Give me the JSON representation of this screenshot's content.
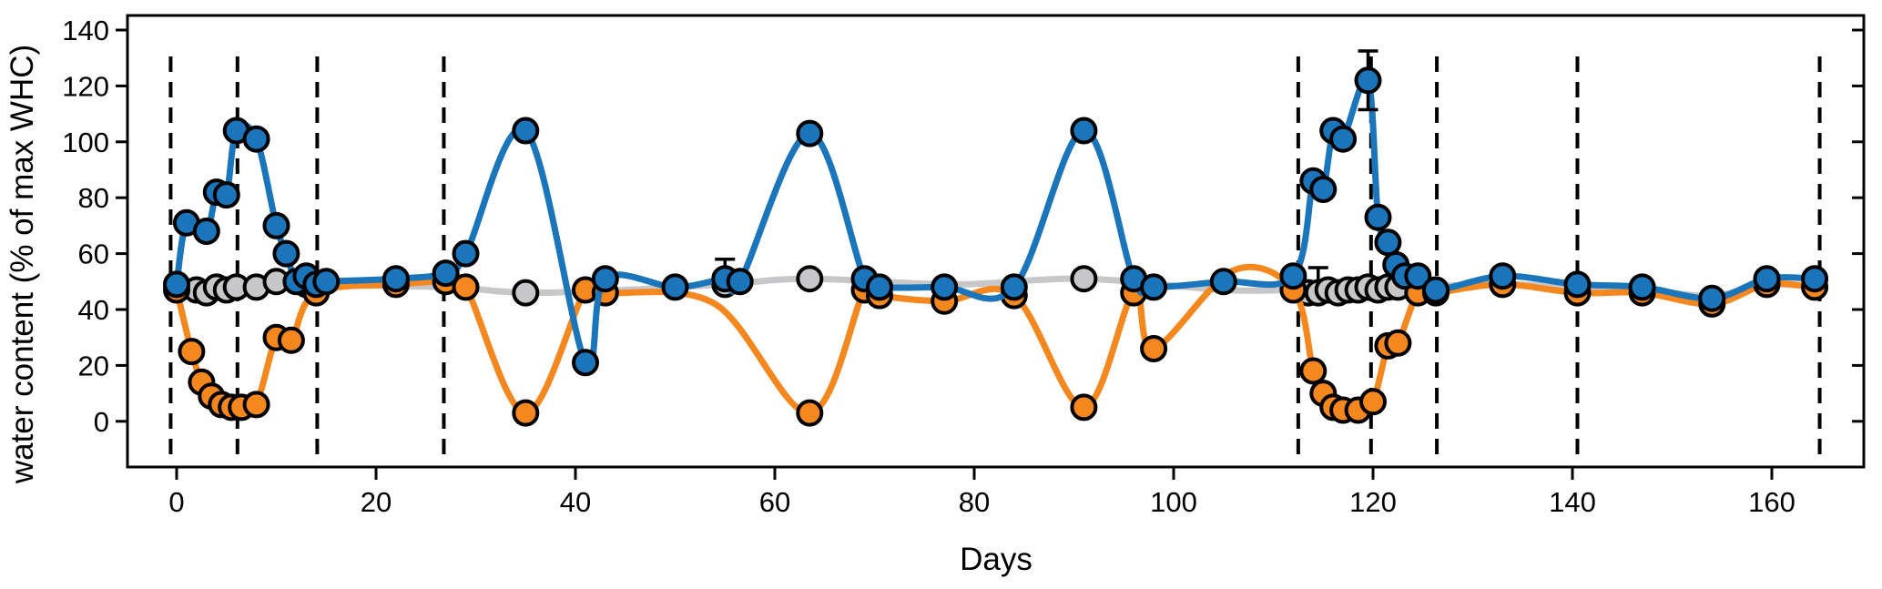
{
  "figure": {
    "x_axis": {
      "label": "Days",
      "ticks": [
        0,
        20,
        40,
        60,
        80,
        100,
        120,
        140,
        160
      ]
    },
    "y_axis": {
      "label": "water content (% of max WHC)",
      "ticks": [
        0,
        20,
        40,
        60,
        80,
        100,
        120,
        140
      ]
    },
    "event_lines_days": [
      -0.6,
      6.1,
      14.1,
      26.8,
      112.5,
      119.8,
      126.4,
      140.5,
      164.8
    ]
  },
  "colors": {
    "blue_series": "#1b75bb",
    "orange_series": "#f5871f",
    "gray_series": "#c7c7c9",
    "marker_edge": "#000000",
    "frame": "#000000",
    "event_line": "#000000"
  },
  "chart_data": {
    "type": "line",
    "title": "",
    "xlabel": "Days",
    "ylabel": "water content (% of max WHC)",
    "x_range": [
      -4.9,
      169.2
    ],
    "y_range": [
      -16.4,
      145.2
    ],
    "grid": false,
    "legend": "none",
    "marker": "circle",
    "line_style": "smooth-spline",
    "event_lines_days": [
      -0.6,
      6.1,
      14.1,
      26.8,
      112.5,
      119.8,
      126.4,
      140.5,
      164.8
    ],
    "series": [
      {
        "name": "gray",
        "color": "#c7c7c9",
        "points": [
          {
            "d": 2,
            "v": 47
          },
          {
            "d": 3,
            "v": 46
          },
          {
            "d": 4,
            "v": 48
          },
          {
            "d": 5,
            "v": 47
          },
          {
            "d": 6,
            "v": 48
          },
          {
            "d": 8,
            "v": 48
          },
          {
            "d": 10,
            "v": 50
          },
          {
            "d": 13,
            "v": 49
          },
          {
            "d": 27,
            "v": 48,
            "h": true
          },
          {
            "d": 35,
            "v": 46
          },
          {
            "d": 45,
            "v": 47,
            "h": true
          },
          {
            "d": 55,
            "v": 49,
            "eu": 9
          },
          {
            "d": 63.5,
            "v": 51
          },
          {
            "d": 78,
            "v": 49,
            "h": true
          },
          {
            "d": 91,
            "v": 51
          },
          {
            "d": 105,
            "v": 47,
            "h": true
          },
          {
            "d": 112.5,
            "v": 47
          },
          {
            "d": 113.5,
            "v": 46
          },
          {
            "d": 114.5,
            "v": 46,
            "eu": 9
          },
          {
            "d": 115.5,
            "v": 47
          },
          {
            "d": 116.5,
            "v": 46
          },
          {
            "d": 117.5,
            "v": 47
          },
          {
            "d": 118.5,
            "v": 47
          },
          {
            "d": 119.5,
            "v": 48
          },
          {
            "d": 120.5,
            "v": 47
          },
          {
            "d": 121.5,
            "v": 48
          },
          {
            "d": 122.5,
            "v": 48
          },
          {
            "d": 133,
            "v": 49,
            "h": true
          },
          {
            "d": 140.5,
            "v": 48,
            "h": true
          },
          {
            "d": 147,
            "v": 47,
            "h": true
          },
          {
            "d": 154,
            "v": 45,
            "h": true
          },
          {
            "d": 159.5,
            "v": 49,
            "h": true
          },
          {
            "d": 164.3,
            "v": 48,
            "h": true
          }
        ]
      },
      {
        "name": "orange",
        "color": "#f5871f",
        "points": [
          {
            "d": 0,
            "v": 47
          },
          {
            "d": 1.5,
            "v": 25
          },
          {
            "d": 2.5,
            "v": 14
          },
          {
            "d": 3.5,
            "v": 9
          },
          {
            "d": 4.5,
            "v": 6
          },
          {
            "d": 5.5,
            "v": 5
          },
          {
            "d": 6.5,
            "v": 5
          },
          {
            "d": 8,
            "v": 6
          },
          {
            "d": 10,
            "v": 30
          },
          {
            "d": 11.5,
            "v": 29
          },
          {
            "d": 14,
            "v": 46
          },
          {
            "d": 22,
            "v": 49
          },
          {
            "d": 27,
            "v": 50
          },
          {
            "d": 29,
            "v": 48
          },
          {
            "d": 35,
            "v": 3
          },
          {
            "d": 41,
            "v": 47
          },
          {
            "d": 43,
            "v": 46
          },
          {
            "d": 54,
            "v": 42,
            "h": true
          },
          {
            "d": 63.5,
            "v": 3
          },
          {
            "d": 69,
            "v": 47
          },
          {
            "d": 70.5,
            "v": 45
          },
          {
            "d": 77,
            "v": 43
          },
          {
            "d": 84,
            "v": 45
          },
          {
            "d": 91,
            "v": 5
          },
          {
            "d": 96,
            "v": 46
          },
          {
            "d": 98,
            "v": 26
          },
          {
            "d": 106,
            "v": 54,
            "h": true
          },
          {
            "d": 112,
            "v": 47
          },
          {
            "d": 114,
            "v": 18
          },
          {
            "d": 115,
            "v": 10
          },
          {
            "d": 116,
            "v": 5
          },
          {
            "d": 117,
            "v": 4
          },
          {
            "d": 118.5,
            "v": 4
          },
          {
            "d": 120,
            "v": 7
          },
          {
            "d": 121.5,
            "v": 27
          },
          {
            "d": 122.5,
            "v": 28
          },
          {
            "d": 124.5,
            "v": 46
          },
          {
            "d": 126.3,
            "v": 46
          },
          {
            "d": 133,
            "v": 49
          },
          {
            "d": 140.5,
            "v": 46
          },
          {
            "d": 147,
            "v": 46
          },
          {
            "d": 154,
            "v": 42
          },
          {
            "d": 159.5,
            "v": 49
          },
          {
            "d": 164.3,
            "v": 48
          }
        ]
      },
      {
        "name": "blue",
        "color": "#1b75bb",
        "points": [
          {
            "d": 0,
            "v": 49
          },
          {
            "d": 1,
            "v": 71
          },
          {
            "d": 3,
            "v": 68
          },
          {
            "d": 4,
            "v": 82
          },
          {
            "d": 5,
            "v": 81
          },
          {
            "d": 6,
            "v": 104
          },
          {
            "d": 8,
            "v": 101
          },
          {
            "d": 10,
            "v": 70
          },
          {
            "d": 11,
            "v": 60
          },
          {
            "d": 12,
            "v": 50
          },
          {
            "d": 13,
            "v": 52
          },
          {
            "d": 14,
            "v": 49
          },
          {
            "d": 15,
            "v": 50
          },
          {
            "d": 22,
            "v": 51
          },
          {
            "d": 27,
            "v": 53
          },
          {
            "d": 29,
            "v": 60
          },
          {
            "d": 35,
            "v": 104
          },
          {
            "d": 41,
            "v": 21
          },
          {
            "d": 43,
            "v": 51
          },
          {
            "d": 50,
            "v": 48
          },
          {
            "d": 55,
            "v": 51
          },
          {
            "d": 56.5,
            "v": 50
          },
          {
            "d": 63.5,
            "v": 103
          },
          {
            "d": 69,
            "v": 51
          },
          {
            "d": 70.5,
            "v": 48
          },
          {
            "d": 77,
            "v": 48
          },
          {
            "d": 84,
            "v": 48
          },
          {
            "d": 91,
            "v": 104
          },
          {
            "d": 96,
            "v": 51
          },
          {
            "d": 98,
            "v": 48
          },
          {
            "d": 105,
            "v": 50
          },
          {
            "d": 112,
            "v": 52
          },
          {
            "d": 114,
            "v": 86
          },
          {
            "d": 115,
            "v": 83
          },
          {
            "d": 116,
            "v": 104
          },
          {
            "d": 117,
            "v": 101
          },
          {
            "d": 119.5,
            "v": 122,
            "eu": 10.5,
            "ed": 10.5
          },
          {
            "d": 120.5,
            "v": 73,
            "ed": 2.5
          },
          {
            "d": 121.5,
            "v": 64
          },
          {
            "d": 122.3,
            "v": 56
          },
          {
            "d": 123.2,
            "v": 52
          },
          {
            "d": 124.5,
            "v": 52
          },
          {
            "d": 126.3,
            "v": 47
          },
          {
            "d": 133,
            "v": 52
          },
          {
            "d": 140.5,
            "v": 49
          },
          {
            "d": 147,
            "v": 48
          },
          {
            "d": 154,
            "v": 44
          },
          {
            "d": 159.5,
            "v": 51
          },
          {
            "d": 164.3,
            "v": 51
          }
        ]
      }
    ]
  }
}
